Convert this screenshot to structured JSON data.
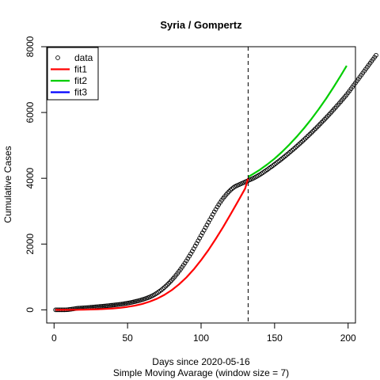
{
  "chart_data": {
    "type": "scatter",
    "title": "Syria / Gompertz",
    "xlabel": "Days since 2020-05-16",
    "xlabel2": "Simple Moving Avarage (window size = 7)",
    "ylabel": "Cumulative Cases",
    "xlim": [
      -5,
      205
    ],
    "ylim": [
      -400,
      8000
    ],
    "x_ticks": [
      0,
      50,
      100,
      150,
      200
    ],
    "y_ticks": [
      0,
      2000,
      4000,
      6000,
      8000
    ],
    "vline_x": 132,
    "legend_position": "top-left",
    "legend": [
      {
        "label": "data",
        "kind": "point",
        "color": "#000000"
      },
      {
        "label": "fit1",
        "kind": "line",
        "color": "#ff0000"
      },
      {
        "label": "fit2",
        "kind": "line",
        "color": "#00cd00"
      },
      {
        "label": "fit3",
        "kind": "line",
        "color": "#0000ff"
      }
    ],
    "data_points": {
      "name": "data",
      "x_start": 1,
      "x_step": 1,
      "values": [
        0,
        0,
        0,
        0,
        0,
        0,
        0,
        2,
        5,
        10,
        15,
        22,
        28,
        35,
        42,
        48,
        52,
        55,
        58,
        61,
        64,
        67,
        70,
        74,
        78,
        82,
        86,
        90,
        94,
        98,
        102,
        106,
        110,
        114,
        118,
        123,
        128,
        133,
        138,
        143,
        148,
        153,
        158,
        164,
        170,
        176,
        182,
        189,
        196,
        204,
        212,
        221,
        230,
        240,
        250,
        261,
        272,
        284,
        297,
        310,
        324,
        339,
        355,
        372,
        390,
        410,
        432,
        456,
        482,
        510,
        540,
        572,
        606,
        642,
        680,
        720,
        762,
        806,
        852,
        900,
        950,
        1002,
        1056,
        1112,
        1170,
        1230,
        1292,
        1356,
        1422,
        1490,
        1560,
        1632,
        1706,
        1782,
        1860,
        1940,
        2020,
        2100,
        2180,
        2260,
        2340,
        2420,
        2500,
        2580,
        2660,
        2740,
        2820,
        2900,
        2980,
        3055,
        3130,
        3200,
        3265,
        3330,
        3390,
        3445,
        3500,
        3550,
        3595,
        3640,
        3680,
        3715,
        3745,
        3770,
        3790,
        3810,
        3830,
        3850,
        3870,
        3890,
        3910,
        3930,
        3950,
        3970,
        3990,
        4010,
        4035,
        4060,
        4085,
        4110,
        4140,
        4170,
        4200,
        4230,
        4262,
        4294,
        4326,
        4358,
        4390,
        4424,
        4458,
        4492,
        4526,
        4560,
        4596,
        4632,
        4668,
        4704,
        4740,
        4778,
        4816,
        4854,
        4892,
        4930,
        4970,
        5010,
        5050,
        5090,
        5130,
        5172,
        5214,
        5256,
        5298,
        5340,
        5384,
        5428,
        5472,
        5516,
        5560,
        5606,
        5652,
        5698,
        5744,
        5790,
        5838,
        5886,
        5934,
        5982,
        6030,
        6080,
        6130,
        6180,
        6230,
        6280,
        6332,
        6384,
        6436,
        6488,
        6540,
        6600,
        6660,
        6720,
        6780,
        6840,
        6900,
        6960,
        7020,
        7080,
        7140,
        7200,
        7260,
        7320,
        7380,
        7440,
        7500,
        7560,
        7620,
        7680,
        7740
      ]
    },
    "series": [
      {
        "name": "fit1",
        "color": "#ff0000",
        "x": [
          1,
          5,
          10,
          15,
          20,
          25,
          30,
          35,
          40,
          45,
          50,
          55,
          60,
          65,
          70,
          75,
          80,
          85,
          90,
          95,
          100,
          105,
          110,
          115,
          120,
          125,
          130,
          132
        ],
        "values": [
          0,
          0,
          1,
          3,
          6,
          11,
          18,
          28,
          42,
          62,
          90,
          128,
          180,
          250,
          340,
          455,
          600,
          775,
          985,
          1230,
          1510,
          1820,
          2160,
          2520,
          2900,
          3290,
          3690,
          4000
        ]
      },
      {
        "name": "fit2",
        "color": "#00cd00",
        "x": [
          132,
          135,
          140,
          145,
          150,
          155,
          160,
          165,
          170,
          175,
          180,
          185,
          190,
          195,
          199
        ],
        "values": [
          4040,
          4120,
          4260,
          4420,
          4600,
          4800,
          5020,
          5260,
          5520,
          5800,
          6100,
          6420,
          6760,
          7120,
          7420
        ]
      }
    ]
  }
}
